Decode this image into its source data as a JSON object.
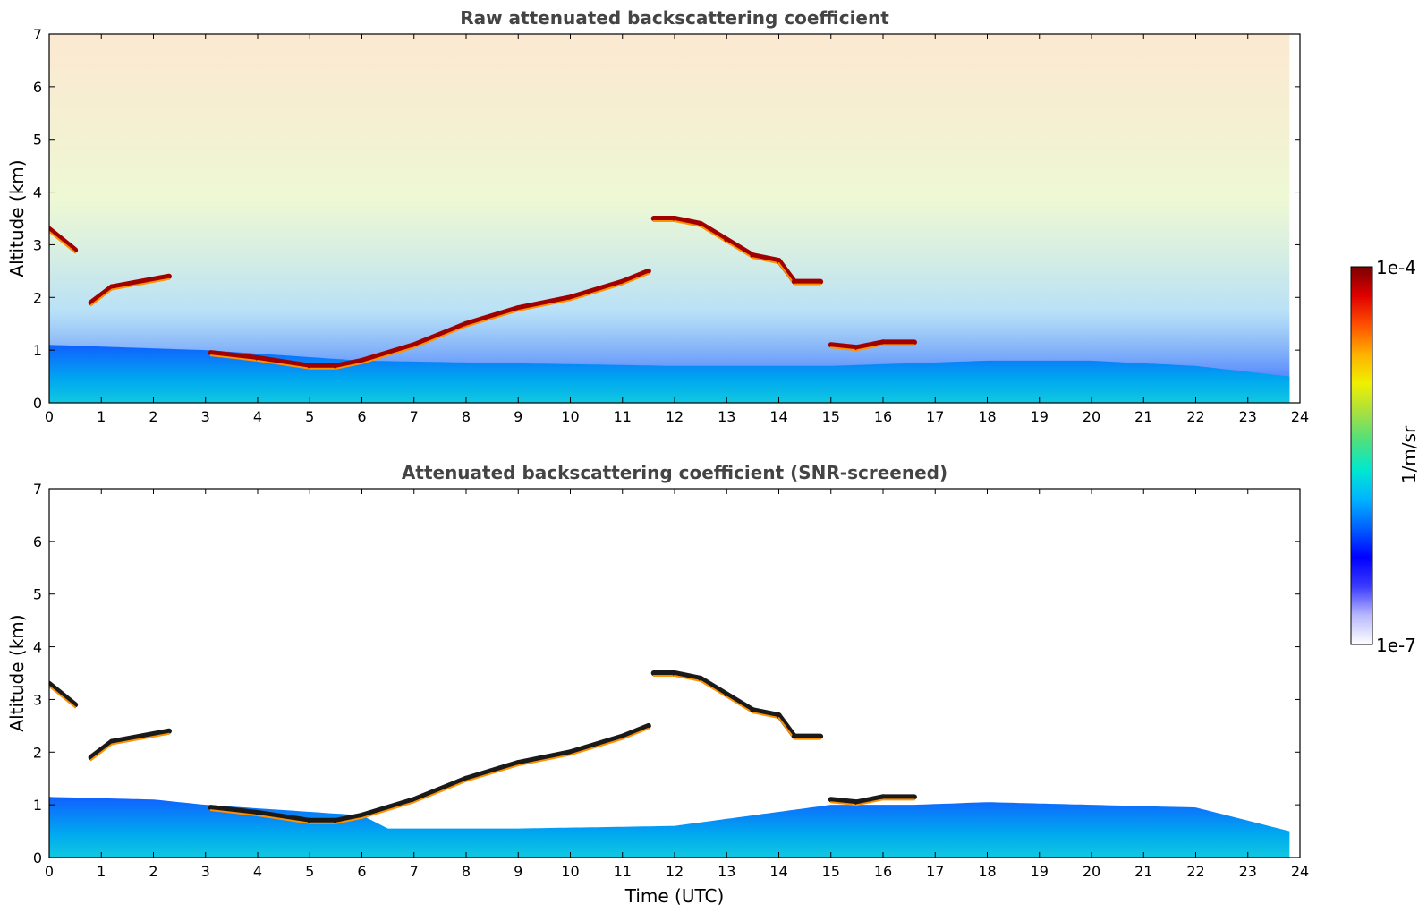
{
  "colorbar": {
    "label": "1/m/sr",
    "max_label": "1e-4",
    "min_label": "1e-7",
    "colors": [
      "#ffffff",
      "#b8b8ff",
      "#3a3aff",
      "#0000ff",
      "#0060ff",
      "#00b4ff",
      "#00e8d0",
      "#4ce080",
      "#a8e040",
      "#f0f000",
      "#ffb000",
      "#ff5000",
      "#e00000",
      "#7a0000"
    ]
  },
  "chart_data": [
    {
      "type": "heatmap",
      "title": "Raw attenuated backscattering coefficient",
      "xlabel": "",
      "ylabel": "Altitude (km)",
      "xlim": [
        0,
        24
      ],
      "ylim": [
        0,
        7
      ],
      "x_ticks": [
        "0",
        "1",
        "2",
        "3",
        "4",
        "5",
        "6",
        "7",
        "8",
        "9",
        "10",
        "11",
        "12",
        "13",
        "14",
        "15",
        "16",
        "17",
        "18",
        "19",
        "20",
        "21",
        "22",
        "23",
        "24"
      ],
      "y_ticks": [
        "0",
        "1",
        "2",
        "3",
        "4",
        "5",
        "6",
        "7"
      ],
      "data_end_time": 23.8,
      "color_scale": "log",
      "color_range": [
        1e-07,
        0.0001
      ],
      "cloud_layer": [
        [
          0,
          3.3
        ],
        [
          0.5,
          2.9
        ],
        [
          0.8,
          1.9
        ],
        [
          1.2,
          2.2
        ],
        [
          2.3,
          2.4
        ],
        [
          3.1,
          0.95
        ],
        [
          4.0,
          0.85
        ],
        [
          5.0,
          0.7
        ],
        [
          5.5,
          0.7
        ],
        [
          6.0,
          0.8
        ],
        [
          7.0,
          1.1
        ],
        [
          8.0,
          1.5
        ],
        [
          9.0,
          1.8
        ],
        [
          10.0,
          2.0
        ],
        [
          11.0,
          2.3
        ],
        [
          11.5,
          2.5
        ],
        [
          11.6,
          3.5
        ],
        [
          12.0,
          3.5
        ],
        [
          12.5,
          3.4
        ],
        [
          13.0,
          3.1
        ],
        [
          13.5,
          2.8
        ],
        [
          14.0,
          2.7
        ],
        [
          14.3,
          2.3
        ],
        [
          14.8,
          2.3
        ],
        [
          15.0,
          1.1
        ],
        [
          15.5,
          1.05
        ],
        [
          16.0,
          1.15
        ],
        [
          16.6,
          1.15
        ]
      ],
      "boundary_layer_top": [
        [
          0,
          1.1
        ],
        [
          3.0,
          1.0
        ],
        [
          6.0,
          0.8
        ],
        [
          9.0,
          0.75
        ],
        [
          12.0,
          0.7
        ],
        [
          15.0,
          0.7
        ],
        [
          18.0,
          0.8
        ],
        [
          20.0,
          0.8
        ],
        [
          22.0,
          0.7
        ],
        [
          23.8,
          0.5
        ]
      ]
    },
    {
      "type": "heatmap",
      "title": "Attenuated backscattering coefficient (SNR-screened)",
      "xlabel": "Time (UTC)",
      "ylabel": "Altitude (km)",
      "xlim": [
        0,
        24
      ],
      "ylim": [
        0,
        7
      ],
      "x_ticks": [
        "0",
        "1",
        "2",
        "3",
        "4",
        "5",
        "6",
        "7",
        "8",
        "9",
        "10",
        "11",
        "12",
        "13",
        "14",
        "15",
        "16",
        "17",
        "18",
        "19",
        "20",
        "21",
        "22",
        "23",
        "24"
      ],
      "y_ticks": [
        "0",
        "1",
        "2",
        "3",
        "4",
        "5",
        "6",
        "7"
      ],
      "data_end_time": 23.8,
      "color_scale": "log",
      "color_range": [
        1e-07,
        0.0001
      ],
      "cloud_layer": [
        [
          0,
          3.3
        ],
        [
          0.5,
          2.9
        ],
        [
          0.8,
          1.9
        ],
        [
          1.2,
          2.2
        ],
        [
          2.3,
          2.4
        ],
        [
          3.1,
          0.95
        ],
        [
          4.0,
          0.85
        ],
        [
          5.0,
          0.7
        ],
        [
          5.5,
          0.7
        ],
        [
          6.0,
          0.8
        ],
        [
          7.0,
          1.1
        ],
        [
          8.0,
          1.5
        ],
        [
          9.0,
          1.8
        ],
        [
          10.0,
          2.0
        ],
        [
          11.0,
          2.3
        ],
        [
          11.5,
          2.5
        ],
        [
          11.6,
          3.5
        ],
        [
          12.0,
          3.5
        ],
        [
          12.5,
          3.4
        ],
        [
          13.0,
          3.1
        ],
        [
          13.5,
          2.8
        ],
        [
          14.0,
          2.7
        ],
        [
          14.3,
          2.3
        ],
        [
          14.8,
          2.3
        ],
        [
          15.0,
          1.1
        ],
        [
          15.5,
          1.05
        ],
        [
          16.0,
          1.15
        ],
        [
          16.6,
          1.15
        ]
      ],
      "boundary_layer_top": [
        [
          0,
          1.15
        ],
        [
          2.0,
          1.1
        ],
        [
          3.0,
          1.0
        ],
        [
          6.0,
          0.8
        ],
        [
          6.5,
          0.55
        ],
        [
          9.0,
          0.55
        ],
        [
          12.0,
          0.6
        ],
        [
          15.0,
          1.0
        ],
        [
          16.6,
          1.0
        ],
        [
          18.0,
          1.05
        ],
        [
          20.0,
          1.0
        ],
        [
          22.0,
          0.95
        ],
        [
          23.0,
          0.7
        ],
        [
          23.8,
          0.5
        ]
      ]
    }
  ]
}
